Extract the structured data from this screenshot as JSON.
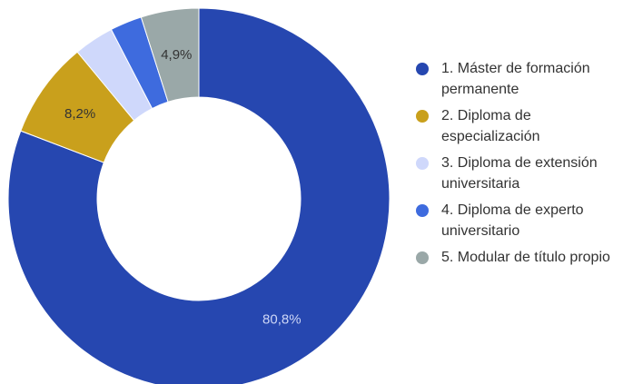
{
  "chart_data": {
    "type": "pie",
    "donut": true,
    "title": "",
    "categories": [
      "1. Máster de formación permanente",
      "2. Diploma de especialización",
      "3. Diploma de extensión universitaria",
      "4. Diploma de experto universitario",
      "5. Modular de título propio"
    ],
    "values": [
      80.8,
      8.2,
      3.4,
      2.7,
      4.9
    ],
    "data_labels": [
      "80,8%",
      "8,2%",
      "",
      "",
      "4,9%"
    ],
    "colors": [
      "#2647b0",
      "#c9a01c",
      "#cfd8fb",
      "#3e6bde",
      "#9aa8a8"
    ],
    "label_colors": [
      "#cdd6f6",
      "#333333",
      "#333333",
      "#333333",
      "#333333"
    ],
    "legend_position": "right",
    "start_angle_deg": 0,
    "direction": "clockwise"
  }
}
